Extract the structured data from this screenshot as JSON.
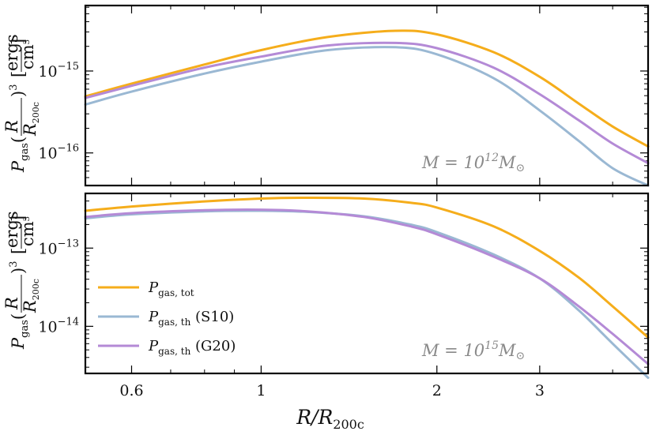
{
  "chart_data": [
    {
      "type": "line",
      "panel": "top",
      "annotation_prefix": "M = 10",
      "annotation_exp": "12",
      "annotation_suffix": "M",
      "annotation_sub": "⊙",
      "ylabel": "P_gas (R/R_200c)^3 [ergs/cm^3]",
      "xscale": "log",
      "yscale": "log",
      "xlim": [
        0.5,
        4.6
      ],
      "ylim": [
        4e-17,
        6.3e-15
      ],
      "xticks": [
        {
          "v": 0.6,
          "label": "0.6"
        },
        {
          "v": 1,
          "label": "1"
        },
        {
          "v": 2,
          "label": "2"
        },
        {
          "v": 3,
          "label": "3"
        }
      ],
      "yticks": [
        {
          "v": 1e-16,
          "base": "10",
          "exp": "−16"
        },
        {
          "v": 1e-15,
          "base": "10",
          "exp": "−15"
        }
      ],
      "x": [
        0.5,
        0.6,
        0.8,
        1.0,
        1.3,
        1.7,
        2.0,
        2.5,
        3.0,
        3.5,
        4.0,
        4.6
      ],
      "series": [
        {
          "name": "P_gas,tot",
          "color": "#f5ad1b",
          "values": [
            4.9e-16,
            7e-16,
            1.2e-15,
            1.8e-15,
            2.6e-15,
            3.1e-15,
            2.8e-15,
            1.7e-15,
            8.5e-16,
            4e-16,
            2.1e-16,
            1.2e-16
          ]
        },
        {
          "name": "P_gas,th (S10)",
          "color": "#9ab8d3",
          "values": [
            3.9e-16,
            5.6e-16,
            9.3e-16,
            1.3e-15,
            1.8e-15,
            1.95e-15,
            1.6e-15,
            8.2e-16,
            3.3e-16,
            1.4e-16,
            6.5e-17,
            4e-17
          ]
        },
        {
          "name": "P_gas,th (G20)",
          "color": "#b48ad6",
          "values": [
            4.7e-16,
            6.6e-16,
            1.1e-15,
            1.5e-15,
            2.05e-15,
            2.2e-15,
            1.9e-15,
            1.1e-15,
            5.2e-16,
            2.5e-16,
            1.3e-16,
            7.5e-17
          ]
        }
      ]
    },
    {
      "type": "line",
      "panel": "bottom",
      "annotation_prefix": "M = 10",
      "annotation_exp": "15",
      "annotation_suffix": "M",
      "annotation_sub": "⊙",
      "ylabel": "P_gas (R/R_200c)^3 [ergs/cm^3]",
      "xlabel": "R/R200c",
      "xscale": "log",
      "yscale": "log",
      "xlim": [
        0.5,
        4.6
      ],
      "ylim": [
        2.5e-15,
        5e-13
      ],
      "xticks": [
        {
          "v": 0.6,
          "label": "0.6"
        },
        {
          "v": 1,
          "label": "1"
        },
        {
          "v": 2,
          "label": "2"
        },
        {
          "v": 3,
          "label": "3"
        }
      ],
      "yticks": [
        {
          "v": 1e-14,
          "base": "10",
          "exp": "−14"
        },
        {
          "v": 1e-13,
          "base": "10",
          "exp": "−13"
        }
      ],
      "x": [
        0.5,
        0.6,
        0.8,
        1.0,
        1.2,
        1.5,
        1.8,
        2.0,
        2.5,
        3.0,
        3.5,
        4.0,
        4.6
      ],
      "series": [
        {
          "name": "P_gas,tot",
          "color": "#f5ad1b",
          "values": [
            3e-13,
            3.4e-13,
            3.95e-13,
            4.3e-13,
            4.4e-13,
            4.3e-13,
            3.8e-13,
            3.3e-13,
            1.9e-13,
            9.2e-14,
            4.2e-14,
            1.8e-14,
            7.2e-15
          ]
        },
        {
          "name": "P_gas,th (S10)",
          "color": "#9ab8d3",
          "values": [
            2.4e-13,
            2.7e-13,
            2.95e-13,
            3e-13,
            2.9e-13,
            2.55e-13,
            2e-13,
            1.6e-13,
            8.3e-14,
            4.1e-14,
            1.6e-14,
            6e-15,
            2.2e-15
          ]
        },
        {
          "name": "P_gas,th (G20)",
          "color": "#b48ad6",
          "values": [
            2.5e-13,
            2.8e-13,
            3.05e-13,
            3.1e-13,
            2.95e-13,
            2.5e-13,
            1.9e-13,
            1.5e-13,
            7.8e-14,
            4.1e-14,
            1.8e-14,
            8e-15,
            3.3e-15
          ]
        }
      ],
      "legend": {
        "location": "lower-left"
      }
    }
  ]
}
